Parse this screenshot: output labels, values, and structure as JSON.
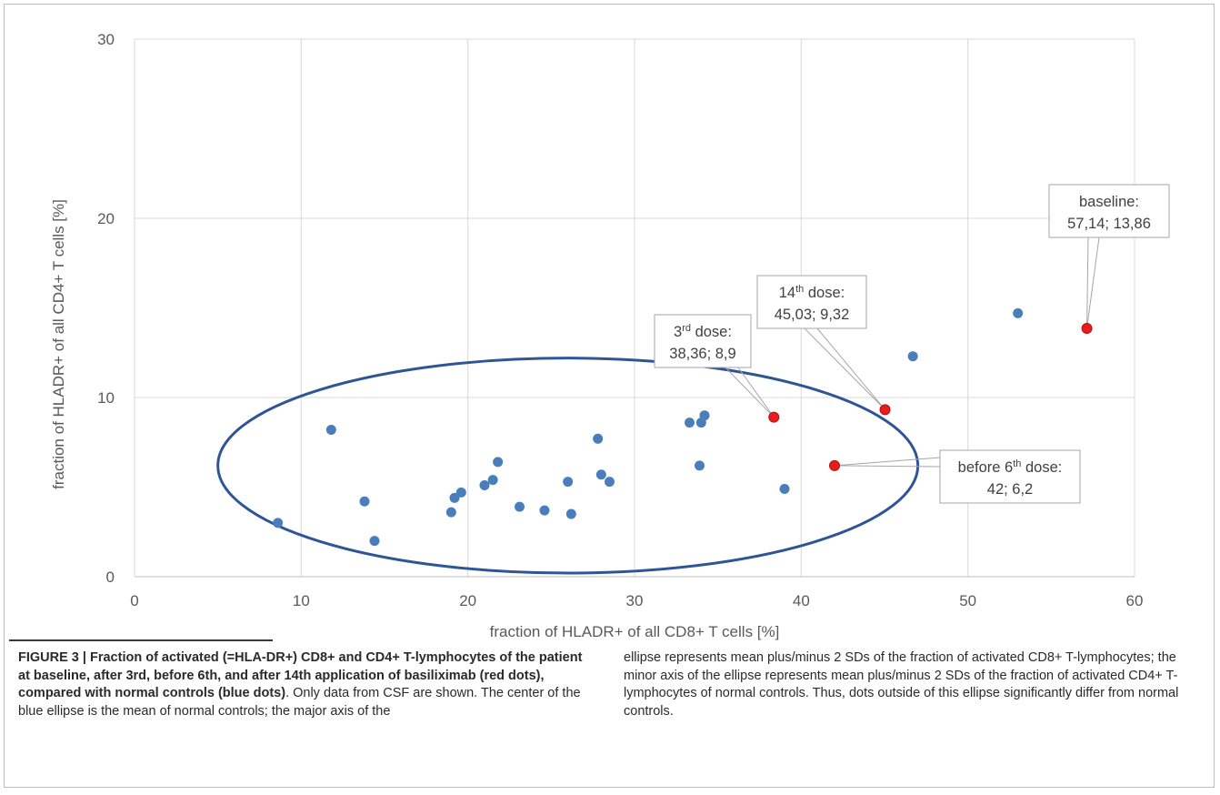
{
  "chart_data": {
    "type": "scatter",
    "xlabel": "fraction of HLADR+ of all CD8+ T cells [%]",
    "ylabel": "fraction of HLADR+ of all CD4+ T cells [%]",
    "xlim": [
      0,
      60
    ],
    "ylim": [
      0,
      30
    ],
    "xticks": [
      0,
      10,
      20,
      30,
      40,
      50,
      60
    ],
    "yticks": [
      0,
      10,
      20,
      30
    ],
    "grid": "vertical and horizontal",
    "ellipse": {
      "cx": 26,
      "cy": 6.2,
      "half_width": 21,
      "half_height": 6
    },
    "series": [
      {
        "color": "#4a7ebb",
        "points": [
          [
            8.6,
            3.0
          ],
          [
            11.8,
            8.2
          ],
          [
            13.8,
            4.2
          ],
          [
            14.4,
            2.0
          ],
          [
            19.0,
            3.6
          ],
          [
            19.2,
            4.4
          ],
          [
            19.6,
            4.7
          ],
          [
            21.0,
            5.1
          ],
          [
            21.5,
            5.4
          ],
          [
            21.8,
            6.4
          ],
          [
            23.1,
            3.9
          ],
          [
            24.6,
            3.7
          ],
          [
            26.0,
            5.3
          ],
          [
            26.2,
            3.5
          ],
          [
            27.8,
            7.7
          ],
          [
            28.0,
            5.7
          ],
          [
            28.5,
            5.3
          ],
          [
            33.3,
            8.6
          ],
          [
            33.9,
            6.2
          ],
          [
            34.0,
            8.6
          ],
          [
            34.2,
            9.0
          ],
          [
            39.0,
            4.9
          ],
          [
            46.7,
            12.3
          ],
          [
            53.0,
            14.7
          ]
        ]
      },
      {
        "color": "#e81c1c",
        "points": [
          [
            57.14,
            13.86
          ],
          [
            45.03,
            9.32
          ],
          [
            38.36,
            8.9
          ],
          [
            42,
            6.2
          ]
        ]
      }
    ],
    "annotations": [
      {
        "lines": [
          "baseline:",
          "57,14; 13,86"
        ],
        "point": [
          57.14,
          13.86
        ]
      },
      {
        "lines": [
          "14th dose:",
          "45,03; 9,32"
        ],
        "sup": "th",
        "point": [
          45.03,
          9.32
        ]
      },
      {
        "lines": [
          "3rd dose:",
          "38,36; 8,9"
        ],
        "sup": "rd",
        "point": [
          38.36,
          8.9
        ]
      },
      {
        "lines": [
          "before 6th dose:",
          "42; 6,2"
        ],
        "sup": "th",
        "point": [
          42,
          6.2
        ]
      }
    ]
  },
  "caption": {
    "label": "FIGURE 3 | Fraction of activated (=HLA-DR+) CD8+ and CD4+ T-lymphocytes of the patient at baseline, after 3rd, before 6th, and after 14th application of basiliximab (red dots), compared with normal controls (blue dots)",
    "body_left": ". Only data from CSF are shown. The center of the blue ellipse is the mean of normal controls; the major axis of the",
    "body_right": "ellipse represents mean plus/minus 2 SDs of the fraction of activated CD8+ T-lymphocytes; the minor axis of the ellipse represents mean plus/minus 2 SDs of the fraction of activated CD4+ T-lymphocytes of normal controls. Thus, dots outside of this ellipse significantly differ from normal controls."
  }
}
